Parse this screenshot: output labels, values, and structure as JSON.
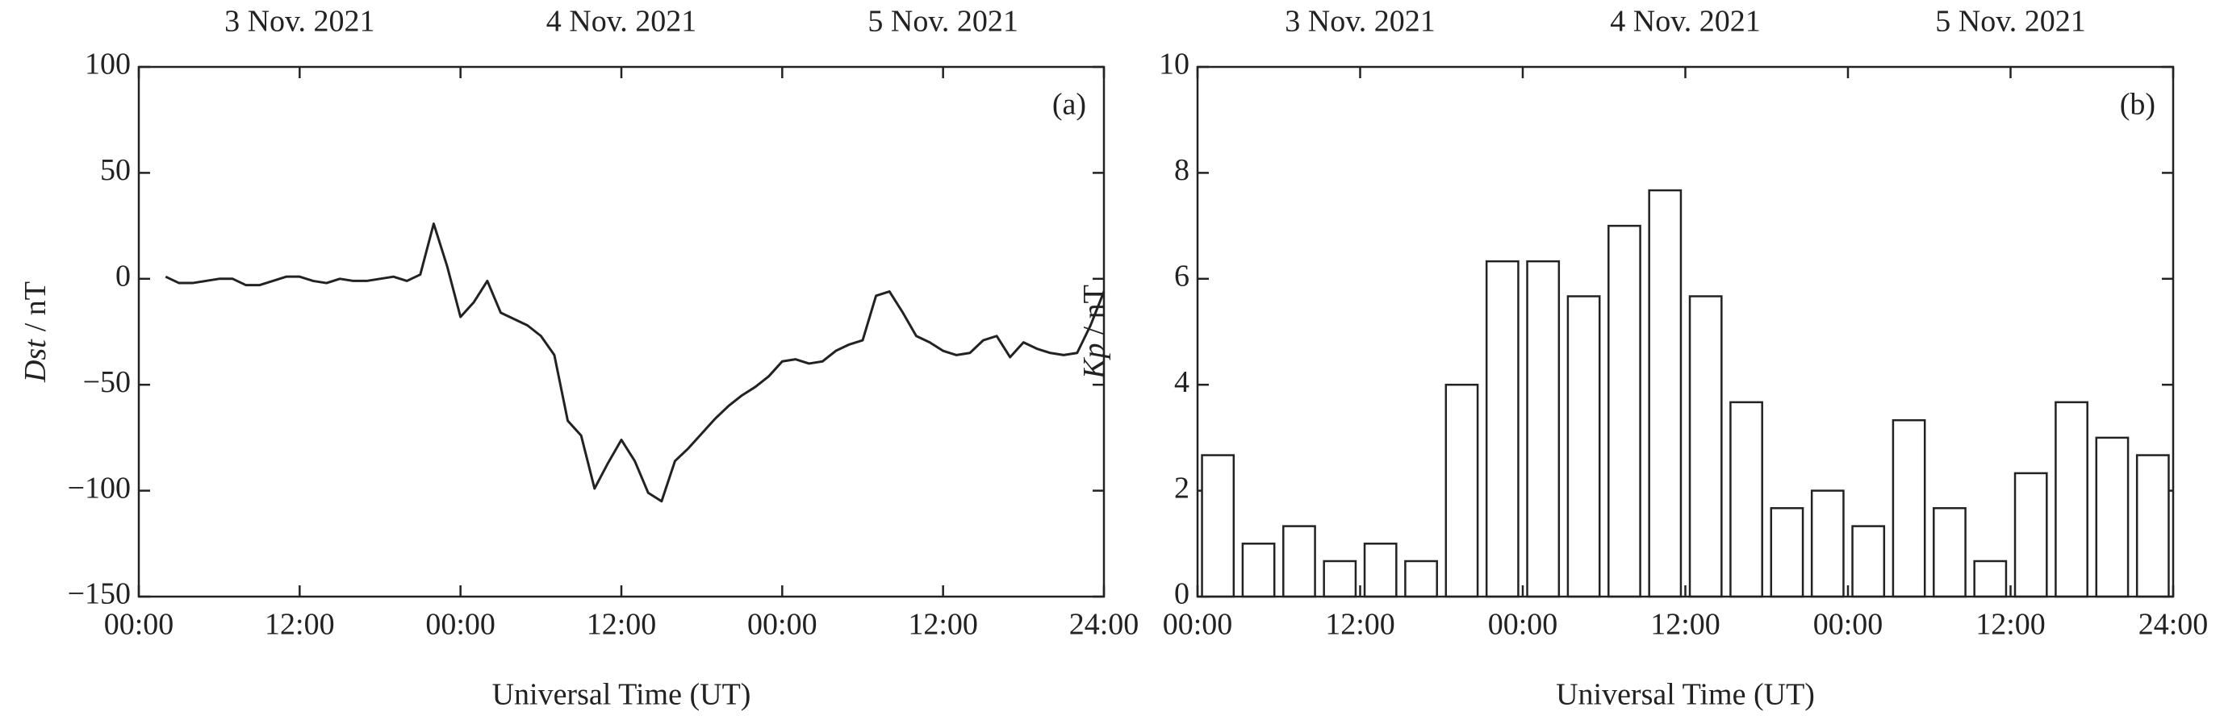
{
  "chart_data": [
    {
      "type": "line",
      "panel_label": "(a)",
      "top_labels": [
        "3 Nov. 2021",
        "4 Nov. 2021",
        "5 Nov. 2021"
      ],
      "xlabel": "Universal Time (UT)",
      "ylabel": {
        "variable": "Dst",
        "unit": "/ nT"
      },
      "xlim": [
        0,
        72
      ],
      "xticks": [
        {
          "value": 0,
          "label": "00:00"
        },
        {
          "value": 12,
          "label": "12:00"
        },
        {
          "value": 24,
          "label": "00:00"
        },
        {
          "value": 36,
          "label": "12:00"
        },
        {
          "value": 48,
          "label": "00:00"
        },
        {
          "value": 60,
          "label": "12:00"
        },
        {
          "value": 72,
          "label": "24:00"
        }
      ],
      "ylim": [
        -150,
        100
      ],
      "yticks": [
        100,
        50,
        0,
        {
          "value": -50,
          "label": "−50"
        },
        {
          "value": -100,
          "label": "−100"
        },
        {
          "value": -150,
          "label": "−150"
        }
      ],
      "x": [
        2,
        3,
        4,
        5,
        6,
        7,
        8,
        9,
        10,
        11,
        12,
        13,
        14,
        15,
        16,
        17,
        18,
        19,
        20,
        21,
        22,
        23,
        24,
        25,
        26,
        27,
        28,
        29,
        30,
        31,
        32,
        33,
        34,
        35,
        36,
        37,
        38,
        39,
        40,
        41,
        42,
        43,
        44,
        45,
        46,
        47,
        48,
        49,
        50,
        51,
        52,
        53,
        54,
        55,
        56,
        57,
        58,
        59,
        60,
        61,
        62,
        63,
        64,
        65,
        66,
        67,
        68,
        69,
        70,
        71,
        72
      ],
      "series": [
        {
          "color": "#222222",
          "values": [
            1,
            -2,
            -2,
            -1,
            0,
            0,
            -3,
            -3,
            -1,
            1,
            1,
            -1,
            -2,
            0,
            -1,
            -1,
            0,
            1,
            -1,
            2,
            26,
            6,
            -18,
            -11,
            -1,
            -16,
            -19,
            -22,
            -27,
            -36,
            -67,
            -74,
            -99,
            -87,
            -76,
            -86,
            -101,
            -105,
            -86,
            -80,
            -73,
            -66,
            -60,
            -55,
            -51,
            -46,
            -39,
            -38,
            -40,
            -39,
            -34,
            -31,
            -29,
            -8,
            -6,
            -16,
            -27,
            -30,
            -34,
            -36,
            -35,
            -29,
            -27,
            -37,
            -30,
            -33,
            -35,
            -36,
            -35,
            -22,
            -6
          ]
        }
      ]
    },
    {
      "type": "bar",
      "panel_label": "(b)",
      "top_labels": [
        "3 Nov. 2021",
        "4 Nov. 2021",
        "5 Nov. 2021"
      ],
      "xlabel": "Universal Time (UT)",
      "ylabel": {
        "variable": "Kp",
        "unit": "/ nT"
      },
      "xlim": [
        0,
        72
      ],
      "xticks": [
        {
          "value": 0,
          "label": "00:00"
        },
        {
          "value": 12,
          "label": "12:00"
        },
        {
          "value": 24,
          "label": "00:00"
        },
        {
          "value": 36,
          "label": "12:00"
        },
        {
          "value": 48,
          "label": "00:00"
        },
        {
          "value": 60,
          "label": "12:00"
        },
        {
          "value": 72,
          "label": "24:00"
        }
      ],
      "ylim": [
        0,
        10
      ],
      "yticks": [
        0,
        2,
        4,
        6,
        8,
        10
      ],
      "x": [
        1.5,
        4.5,
        7.5,
        10.5,
        13.5,
        16.5,
        19.5,
        22.5,
        25.5,
        28.5,
        31.5,
        34.5,
        37.5,
        40.5,
        43.5,
        46.5,
        49.5,
        52.5,
        55.5,
        58.5,
        61.5,
        64.5,
        67.5,
        70.5
      ],
      "series": [
        {
          "color": "#ffffff",
          "values": [
            2.67,
            1,
            1.33,
            0.67,
            1,
            0.67,
            4,
            6.33,
            6.33,
            5.67,
            7,
            7.67,
            5.67,
            3.67,
            1.67,
            2,
            1.33,
            3.33,
            1.67,
            0.67,
            2.33,
            3.67,
            3,
            2.67
          ]
        }
      ]
    }
  ]
}
